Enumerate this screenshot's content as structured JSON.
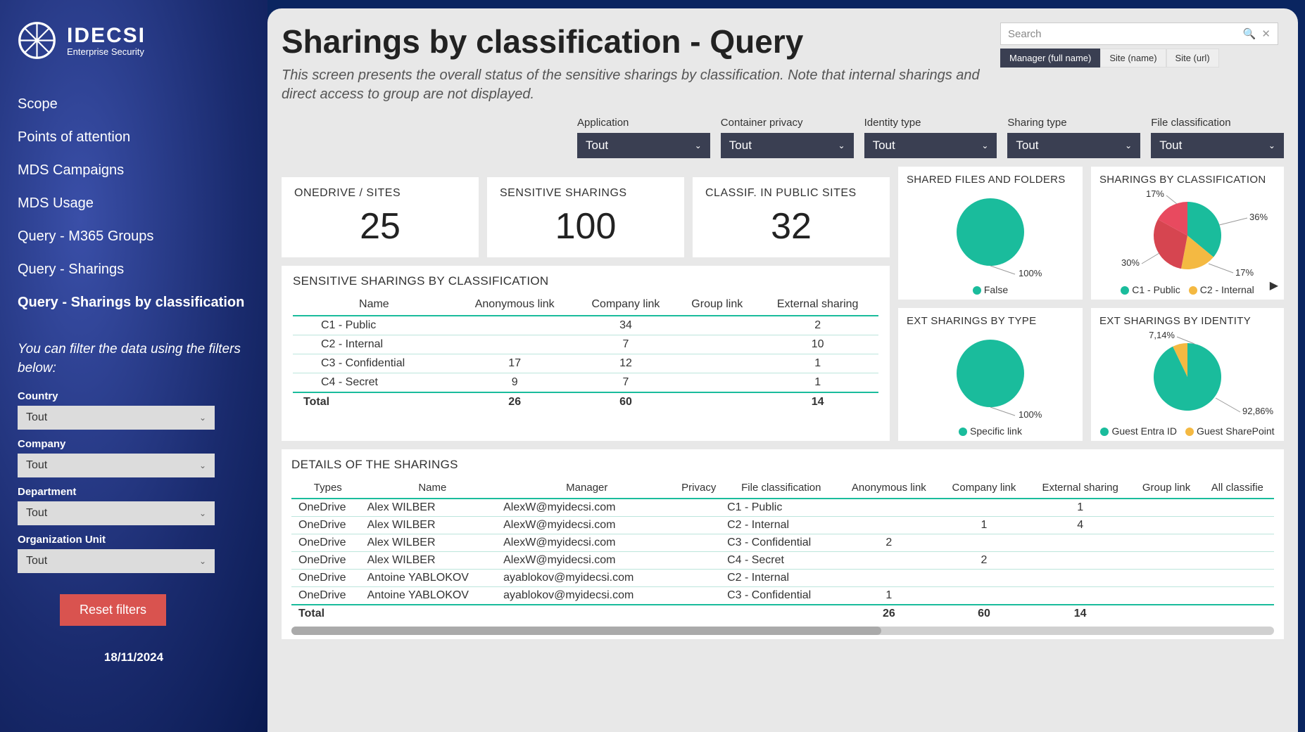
{
  "brand": {
    "title": "IDECSI",
    "subtitle": "Enterprise Security"
  },
  "nav": [
    {
      "label": "Scope",
      "active": false
    },
    {
      "label": "Points of attention",
      "active": false
    },
    {
      "label": "MDS Campaigns",
      "active": false
    },
    {
      "label": "MDS Usage",
      "active": false
    },
    {
      "label": "Query - M365 Groups",
      "active": false
    },
    {
      "label": "Query - Sharings",
      "active": false
    },
    {
      "label": "Query - Sharings by classification",
      "active": true
    }
  ],
  "sidebar_filters": {
    "intro": "You can filter the data using the filters below:",
    "items": [
      {
        "label": "Country",
        "value": "Tout"
      },
      {
        "label": "Company",
        "value": "Tout"
      },
      {
        "label": "Department",
        "value": "Tout"
      },
      {
        "label": "Organization Unit",
        "value": "Tout"
      }
    ],
    "reset": "Reset filters",
    "date": "18/11/2024"
  },
  "page": {
    "title": "Sharings by classification - Query",
    "description": "This screen presents the overall status of the sensitive sharings by classification. Note that internal sharings and direct access to group are not displayed."
  },
  "search": {
    "placeholder": "Search",
    "tabs": [
      {
        "label": "Manager (full name)",
        "active": true
      },
      {
        "label": "Site (name)",
        "active": false
      },
      {
        "label": "Site (url)",
        "active": false
      }
    ]
  },
  "top_filters": [
    {
      "label": "Application",
      "value": "Tout"
    },
    {
      "label": "Container privacy",
      "value": "Tout"
    },
    {
      "label": "Identity type",
      "value": "Tout"
    },
    {
      "label": "Sharing type",
      "value": "Tout"
    },
    {
      "label": "File classification",
      "value": "Tout"
    }
  ],
  "kpis": [
    {
      "label": "ONEDRIVE / SITES",
      "value": "25"
    },
    {
      "label": "SENSITIVE SHARINGS",
      "value": "100"
    },
    {
      "label": "CLASSIF. IN PUBLIC SITES",
      "value": "32"
    }
  ],
  "class_table": {
    "title": "SENSITIVE SHARINGS BY CLASSIFICATION",
    "columns": [
      "Name",
      "Anonymous link",
      "Company link",
      "Group link",
      "External sharing"
    ],
    "rows": [
      {
        "name": "C1 - Public",
        "anon": "",
        "company": "34",
        "group": "",
        "ext": "2"
      },
      {
        "name": "C2 - Internal",
        "anon": "",
        "company": "7",
        "group": "",
        "ext": "10"
      },
      {
        "name": "C3 - Confidential",
        "anon": "17",
        "company": "12",
        "group": "",
        "ext": "1"
      },
      {
        "name": "C4 - Secret",
        "anon": "9",
        "company": "7",
        "group": "",
        "ext": "1"
      }
    ],
    "total": {
      "name": "Total",
      "anon": "26",
      "company": "60",
      "group": "",
      "ext": "14"
    }
  },
  "charts": {
    "shared": {
      "title": "SHARED FILES AND FOLDERS",
      "slices": [
        {
          "pct": 100,
          "color": "#1abc9c",
          "label": "100%"
        }
      ],
      "legend": [
        {
          "color": "#1abc9c",
          "label": "False"
        }
      ]
    },
    "by_class": {
      "title": "SHARINGS BY CLASSIFICATION",
      "slices": [
        {
          "pct": 36,
          "color": "#1abc9c"
        },
        {
          "pct": 17,
          "color": "#f4b942"
        },
        {
          "pct": 30,
          "color": "#d64550"
        },
        {
          "pct": 17,
          "color": "#e84a5f"
        }
      ],
      "callouts": [
        "17%",
        "36%",
        "17%",
        "30%"
      ],
      "legend": [
        {
          "color": "#1abc9c",
          "label": "C1 - Public"
        },
        {
          "color": "#f4b942",
          "label": "C2 - Internal"
        }
      ]
    },
    "ext_type": {
      "title": "EXT SHARINGS BY TYPE",
      "slices": [
        {
          "pct": 100,
          "color": "#1abc9c",
          "label": "100%"
        }
      ],
      "legend": [
        {
          "color": "#1abc9c",
          "label": "Specific link"
        }
      ]
    },
    "ext_identity": {
      "title": "EXT SHARINGS BY IDENTITY",
      "slices": [
        {
          "pct": 92.86,
          "color": "#1abc9c"
        },
        {
          "pct": 7.14,
          "color": "#f4b942"
        }
      ],
      "callouts": [
        "7,14%",
        "92,86%"
      ],
      "legend": [
        {
          "color": "#1abc9c",
          "label": "Guest Entra ID"
        },
        {
          "color": "#f4b942",
          "label": "Guest SharePoint"
        }
      ]
    }
  },
  "details": {
    "title": "DETAILS OF THE SHARINGS",
    "columns": [
      "Types",
      "Name",
      "Manager",
      "Privacy",
      "File classification",
      "Anonymous link",
      "Company link",
      "External sharing",
      "Group link",
      "All classifie"
    ],
    "rows": [
      {
        "type": "OneDrive",
        "name": "Alex WILBER",
        "mgr": "AlexW@myidecsi.com",
        "priv": "",
        "class": "C1 - Public",
        "anon": "",
        "comp": "",
        "ext": "1",
        "grp": ""
      },
      {
        "type": "OneDrive",
        "name": "Alex WILBER",
        "mgr": "AlexW@myidecsi.com",
        "priv": "",
        "class": "C2 - Internal",
        "anon": "",
        "comp": "1",
        "ext": "4",
        "grp": ""
      },
      {
        "type": "OneDrive",
        "name": "Alex WILBER",
        "mgr": "AlexW@myidecsi.com",
        "priv": "",
        "class": "C3 - Confidential",
        "anon": "2",
        "comp": "",
        "ext": "",
        "grp": ""
      },
      {
        "type": "OneDrive",
        "name": "Alex WILBER",
        "mgr": "AlexW@myidecsi.com",
        "priv": "",
        "class": "C4 - Secret",
        "anon": "",
        "comp": "2",
        "ext": "",
        "grp": ""
      },
      {
        "type": "OneDrive",
        "name": "Antoine YABLOKOV",
        "mgr": "ayablokov@myidecsi.com",
        "priv": "",
        "class": "C2 - Internal",
        "anon": "",
        "comp": "",
        "ext": "",
        "grp": ""
      },
      {
        "type": "OneDrive",
        "name": "Antoine YABLOKOV",
        "mgr": "ayablokov@myidecsi.com",
        "priv": "",
        "class": "C3 - Confidential",
        "anon": "1",
        "comp": "",
        "ext": "",
        "grp": ""
      }
    ],
    "total": {
      "type": "Total",
      "anon": "26",
      "comp": "60",
      "ext": "14",
      "grp": ""
    }
  },
  "colors": {
    "teal": "#1abc9c",
    "red": "#d64550",
    "pink": "#e84a5f",
    "yellow": "#f4b942",
    "darkfilter": "#3a3f52"
  }
}
